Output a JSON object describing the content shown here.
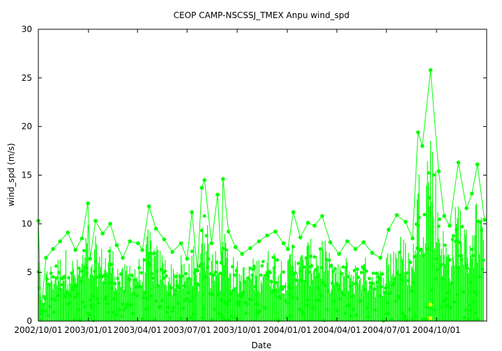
{
  "chart_data": {
    "type": "scatter",
    "title": "CEOP CAMP-NSCSSJ_TMEX Anpu  wind_spd",
    "xlabel": "Date",
    "ylabel": "wind_spd (m/s)",
    "ylim": [
      0,
      30
    ],
    "xlim": [
      "2002-10-01",
      "2005-01-01"
    ],
    "grid": false,
    "legend": "none",
    "y_ticks": [
      0,
      5,
      10,
      15,
      20,
      25,
      30
    ],
    "x_ticks": [
      {
        "date": "2002-10-01",
        "label": "2002/10/01"
      },
      {
        "date": "2003-01-01",
        "label": "2003/01/01"
      },
      {
        "date": "2003-04-01",
        "label": "2003/04/01"
      },
      {
        "date": "2003-07-01",
        "label": "2003/07/01"
      },
      {
        "date": "2003-10-01",
        "label": "2003/10/01"
      },
      {
        "date": "2004-01-01",
        "label": "2004/01/01"
      },
      {
        "date": "2004-04-01",
        "label": "2004/04/01"
      },
      {
        "date": "2004-07-01",
        "label": "2004/07/01"
      },
      {
        "date": "2004-10-01",
        "label": "2004/10/01"
      }
    ],
    "series": [
      {
        "color": "#00ff00",
        "x": [
          "2002-10-01",
          "2002-10-06",
          "2002-10-15",
          "2002-10-28",
          "2002-11-10",
          "2002-11-24",
          "2002-12-08",
          "2002-12-20",
          "2002-12-31",
          "2003-01-04",
          "2003-01-14",
          "2003-01-27",
          "2003-02-10",
          "2003-02-22",
          "2003-03-05",
          "2003-03-18",
          "2003-04-02",
          "2003-04-10",
          "2003-04-22",
          "2003-05-05",
          "2003-05-20",
          "2003-06-04",
          "2003-06-20",
          "2003-07-01",
          "2003-07-10",
          "2003-07-20",
          "2003-07-28",
          "2003-08-02",
          "2003-08-15",
          "2003-08-26",
          "2003-09-02",
          "2003-09-05",
          "2003-09-15",
          "2003-09-28",
          "2003-10-10",
          "2003-10-25",
          "2003-11-10",
          "2003-11-25",
          "2003-12-10",
          "2003-12-25",
          "2004-01-02",
          "2004-01-12",
          "2004-01-25",
          "2004-02-08",
          "2004-02-20",
          "2004-03-05",
          "2004-03-20",
          "2004-04-05",
          "2004-04-20",
          "2004-05-05",
          "2004-05-20",
          "2004-06-05",
          "2004-06-20",
          "2004-07-05",
          "2004-07-20",
          "2004-08-05",
          "2004-08-18",
          "2004-08-28",
          "2004-09-05",
          "2004-09-20",
          "2004-10-05",
          "2004-10-15",
          "2004-10-25",
          "2004-11-10",
          "2004-11-25",
          "2004-12-05",
          "2004-12-15",
          "2004-12-28"
        ],
        "y": [
          10.3,
          0.8,
          6.5,
          7.4,
          8.2,
          9.1,
          7.3,
          8.5,
          12.1,
          6.4,
          10.3,
          9.0,
          10.0,
          7.8,
          6.5,
          8.2,
          8.0,
          7.3,
          11.8,
          9.5,
          8.4,
          7.1,
          8.0,
          6.4,
          11.2,
          5.2,
          13.7,
          14.5,
          8.0,
          13.0,
          6.0,
          14.6,
          9.2,
          7.6,
          6.9,
          7.5,
          8.2,
          8.8,
          9.2,
          8.0,
          7.4,
          11.2,
          8.6,
          10.1,
          9.8,
          10.8,
          8.1,
          6.9,
          8.2,
          7.4,
          8.1,
          7.0,
          6.5,
          9.4,
          10.9,
          10.2,
          8.5,
          19.4,
          18.0,
          25.8,
          15.4,
          10.8,
          9.8,
          16.3,
          11.6,
          13.1,
          16.1,
          10.4
        ]
      },
      {
        "color": "#ffff00",
        "x": [
          "2004-09-20",
          "2004-09-20"
        ],
        "y": [
          1.7,
          0.3
        ]
      }
    ]
  }
}
